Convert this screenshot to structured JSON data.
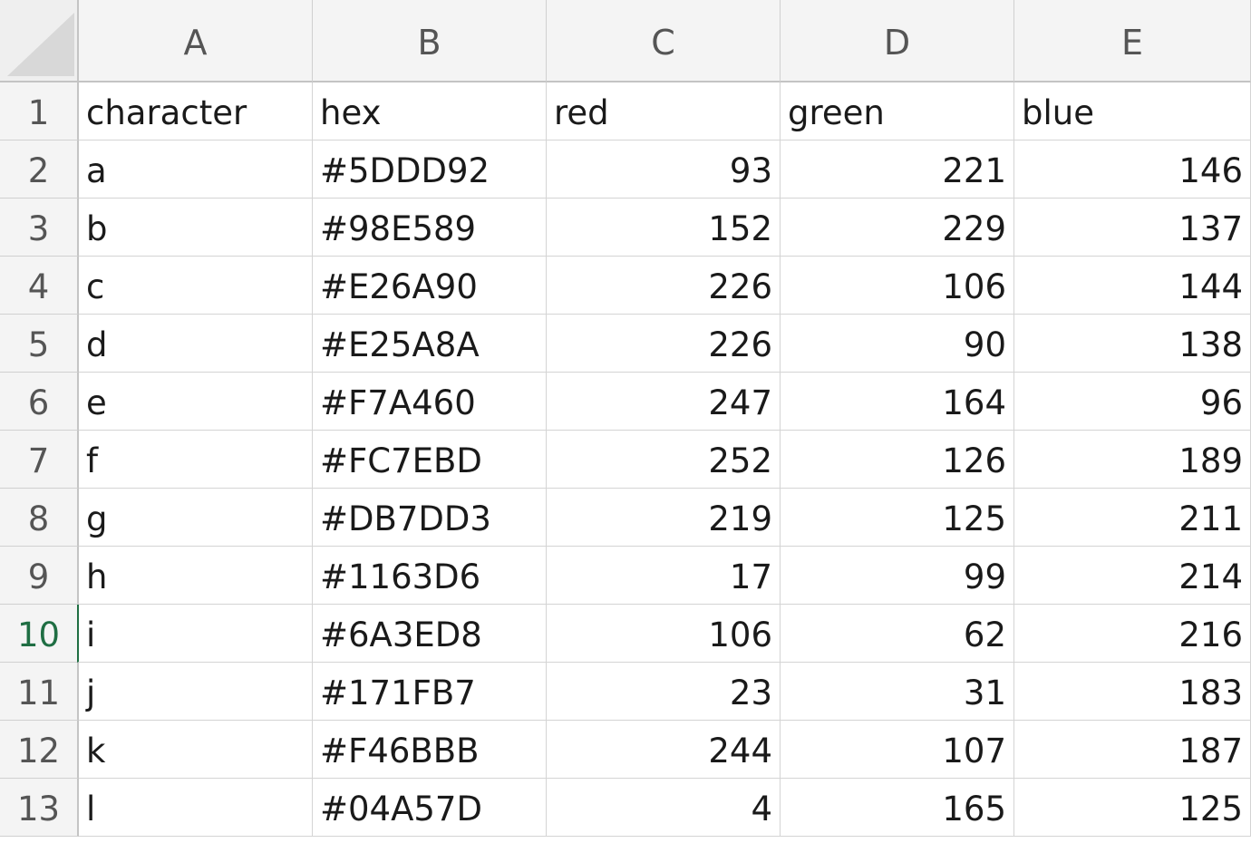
{
  "spreadsheet": {
    "active_row": "10",
    "column_headers": [
      "A",
      "B",
      "C",
      "D",
      "E"
    ],
    "rows": [
      {
        "num": "1",
        "cells": [
          "character",
          "hex",
          "red",
          "green",
          "blue"
        ]
      },
      {
        "num": "2",
        "cells": [
          "a",
          "#5DDD92",
          "93",
          "221",
          "146"
        ]
      },
      {
        "num": "3",
        "cells": [
          "b",
          "#98E589",
          "152",
          "229",
          "137"
        ]
      },
      {
        "num": "4",
        "cells": [
          "c",
          "#E26A90",
          "226",
          "106",
          "144"
        ]
      },
      {
        "num": "5",
        "cells": [
          "d",
          "#E25A8A",
          "226",
          "90",
          "138"
        ]
      },
      {
        "num": "6",
        "cells": [
          "e",
          "#F7A460",
          "247",
          "164",
          "96"
        ]
      },
      {
        "num": "7",
        "cells": [
          "f",
          "#FC7EBD",
          "252",
          "126",
          "189"
        ]
      },
      {
        "num": "8",
        "cells": [
          "g",
          "#DB7DD3",
          "219",
          "125",
          "211"
        ]
      },
      {
        "num": "9",
        "cells": [
          "h",
          "#1163D6",
          "17",
          "99",
          "214"
        ]
      },
      {
        "num": "10",
        "cells": [
          "i",
          "#6A3ED8",
          "106",
          "62",
          "216"
        ]
      },
      {
        "num": "11",
        "cells": [
          "j",
          "#171FB7",
          "23",
          "31",
          "183"
        ]
      },
      {
        "num": "12",
        "cells": [
          "k",
          "#F46BBB",
          "244",
          "107",
          "187"
        ]
      },
      {
        "num": "13",
        "cells": [
          "l",
          "#04A57D",
          "4",
          "165",
          "125"
        ]
      }
    ]
  },
  "colors": {
    "active_accent": "#1f6e43",
    "header_bg": "#f4f4f4",
    "gridline": "#d4d4d4"
  }
}
